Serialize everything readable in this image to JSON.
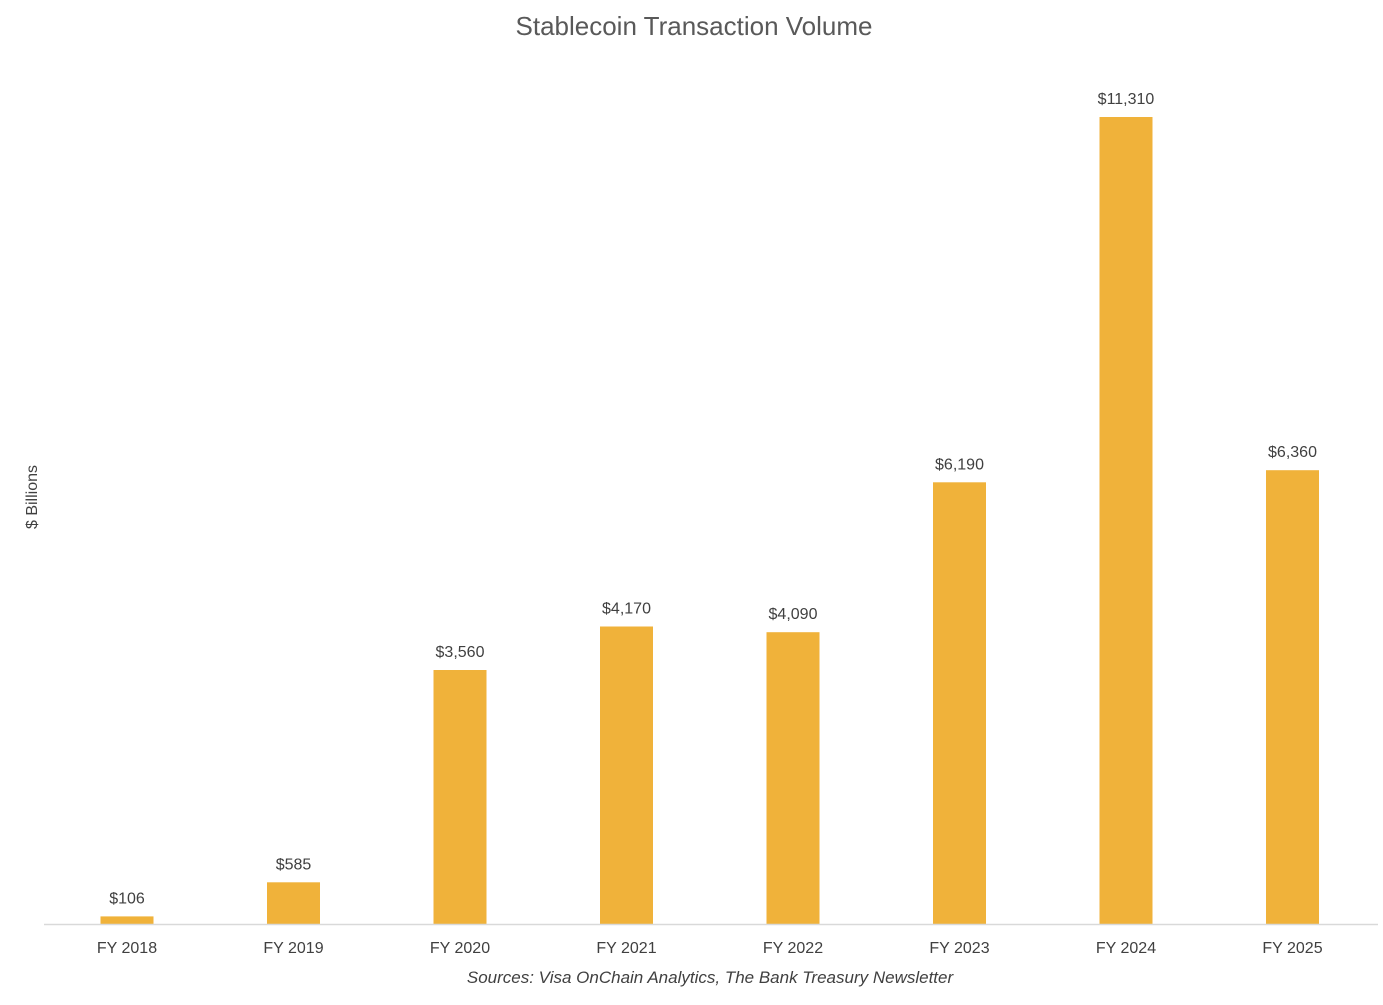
{
  "chart_data": {
    "type": "bar",
    "title": "Stablecoin Transaction Volume",
    "ylabel": "$ Billions",
    "xlabel": "",
    "categories": [
      "FY 2018",
      "FY 2019",
      "FY 2020",
      "FY 2021",
      "FY 2022",
      "FY 2023",
      "FY 2024",
      "FY 2025"
    ],
    "values": [
      106,
      585,
      3560,
      4170,
      4090,
      6190,
      11310,
      6360
    ],
    "data_labels": [
      "$106",
      "$585",
      "$3,560",
      "$4,170",
      "$4,090",
      "$6,190",
      "$11,310",
      "$6,360"
    ],
    "ylim": [
      0,
      11310
    ],
    "grid": false,
    "legend": "none",
    "source": "Sources: Visa OnChain Analytics, The Bank Treasury Newsletter",
    "colors": {
      "bar": "#F0B23A",
      "axis": "#D9D9D9",
      "text": "#404040"
    }
  }
}
